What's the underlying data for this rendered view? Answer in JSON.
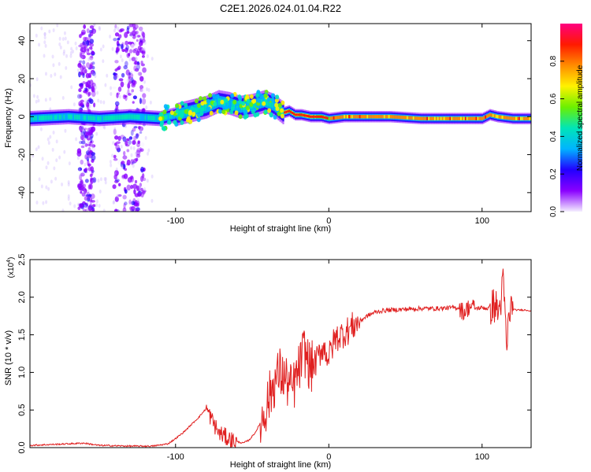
{
  "title": "C2E1.2026.024.01.04.R22",
  "spectrogram": {
    "type": "heatmap",
    "xlabel": "Height of straight line (km)",
    "ylabel": "Frequency (Hz)",
    "xlim": [
      -195,
      132
    ],
    "ylim": [
      -50,
      49
    ],
    "xticks": [
      -100,
      0,
      100
    ],
    "yticks": [
      -40,
      -20,
      0,
      20,
      40
    ],
    "ridge": {
      "x": [
        -195,
        -170,
        -150,
        -130,
        -110,
        -100,
        -90,
        -80,
        -72,
        -65,
        -58,
        -50,
        -42,
        -36,
        -30,
        -26,
        -22,
        -18,
        -12,
        -5,
        0,
        10,
        20,
        40,
        60,
        80,
        100,
        105,
        110,
        120,
        132
      ],
      "y": [
        -1,
        0,
        -1,
        0,
        -1,
        1,
        3,
        5,
        8,
        7,
        5,
        6,
        8,
        6,
        2,
        3,
        1,
        1,
        0,
        0,
        -1,
        0,
        0,
        0,
        -1,
        -1,
        -1,
        1,
        0,
        -1,
        -1
      ]
    },
    "ridge_halfwidth": [
      {
        "from": -195,
        "to": -100,
        "value": 4
      },
      {
        "from": -100,
        "to": -30,
        "value": 6
      },
      {
        "from": -30,
        "to": 132,
        "value": 3
      }
    ],
    "noise_bands": [
      [
        -163,
        -153
      ],
      [
        -140,
        -120
      ]
    ]
  },
  "colorbar": {
    "label": "Normalized spectral amplitude",
    "range": [
      0,
      1
    ],
    "ticks": [
      0.0,
      0.2,
      0.4,
      0.6,
      0.8
    ],
    "tick_labels": [
      "0.0",
      "0.2",
      "0.4",
      "0.6",
      "0.8"
    ],
    "colors": [
      "#f4eeff",
      "#8a00ff",
      "#2200ff",
      "#00b4ff",
      "#00e5b8",
      "#6cf000",
      "#fff200",
      "#ff8c00",
      "#ff1a00",
      "#ff0080"
    ]
  },
  "chart_data": {
    "type": "line",
    "title": "",
    "xlabel": "Height of straight line (km)",
    "ylabel": "SNR (10 * v/v)",
    "yscale_label": "(x10",
    "yscale_exp": "4",
    "xlim": [
      -195,
      132
    ],
    "ylim": [
      0,
      2.5
    ],
    "xticks": [
      -100,
      0,
      100
    ],
    "yticks": [
      0.0,
      0.5,
      1.0,
      1.5,
      2.0,
      2.5
    ],
    "ytick_labels": [
      "0.0",
      "0.5",
      "1.0",
      "1.5",
      "2.0",
      "2.5"
    ],
    "series": [
      {
        "name": "SNR",
        "color": "#e02020",
        "x": [
          -195,
          -170,
          -160,
          -150,
          -130,
          -115,
          -105,
          -100,
          -95,
          -90,
          -85,
          -80,
          -76,
          -72,
          -68,
          -64,
          -60,
          -56,
          -52,
          -48,
          -44,
          -40,
          -36,
          -32,
          -28,
          -24,
          -20,
          -16,
          -12,
          -8,
          -4,
          0,
          4,
          8,
          12,
          16,
          20,
          25,
          30,
          35,
          40,
          50,
          60,
          70,
          80,
          85,
          88,
          92,
          96,
          100,
          104,
          108,
          111,
          114,
          116,
          118,
          122,
          128,
          132
        ],
        "y": [
          0.03,
          0.05,
          0.06,
          0.03,
          0.02,
          0.02,
          0.05,
          0.12,
          0.2,
          0.3,
          0.4,
          0.52,
          0.36,
          0.2,
          0.15,
          0.1,
          0.08,
          0.06,
          0.1,
          0.2,
          0.35,
          0.6,
          0.85,
          1.0,
          0.9,
          0.75,
          1.0,
          1.3,
          1.05,
          1.15,
          1.35,
          1.2,
          1.45,
          1.5,
          1.55,
          1.62,
          1.68,
          1.75,
          1.8,
          1.82,
          1.83,
          1.84,
          1.85,
          1.85,
          1.86,
          1.86,
          1.8,
          1.88,
          1.85,
          1.86,
          1.85,
          1.9,
          1.8,
          2.2,
          1.3,
          1.85,
          1.83,
          1.83,
          1.82
        ]
      }
    ]
  }
}
